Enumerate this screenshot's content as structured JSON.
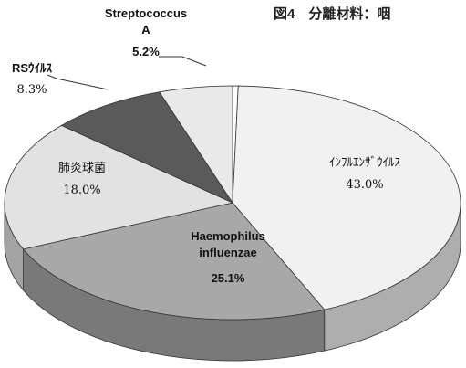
{
  "chart_data": {
    "type": "pie3d",
    "title": "図4　分離材料：咽",
    "categories": [
      null,
      "ｲﾝﾌﾙｴﾝｻﾞｳｲﾙｽ",
      "Haemophilus influenzae",
      "肺炎球菌",
      "RSｳｲﾙｽ",
      "Streptococcus A"
    ],
    "values": [
      0.4,
      43,
      25.1,
      18,
      8.3,
      5.2
    ],
    "value_labels": [
      null,
      "43.0%",
      "25.1%",
      "18.0%",
      "8.3%",
      "5.2%"
    ],
    "colors": [
      "#ffffff",
      "#f1f1f1",
      "#a8a8a8",
      "#e2e2e2",
      "#5a5a5a",
      "#e9e9e9"
    ]
  }
}
